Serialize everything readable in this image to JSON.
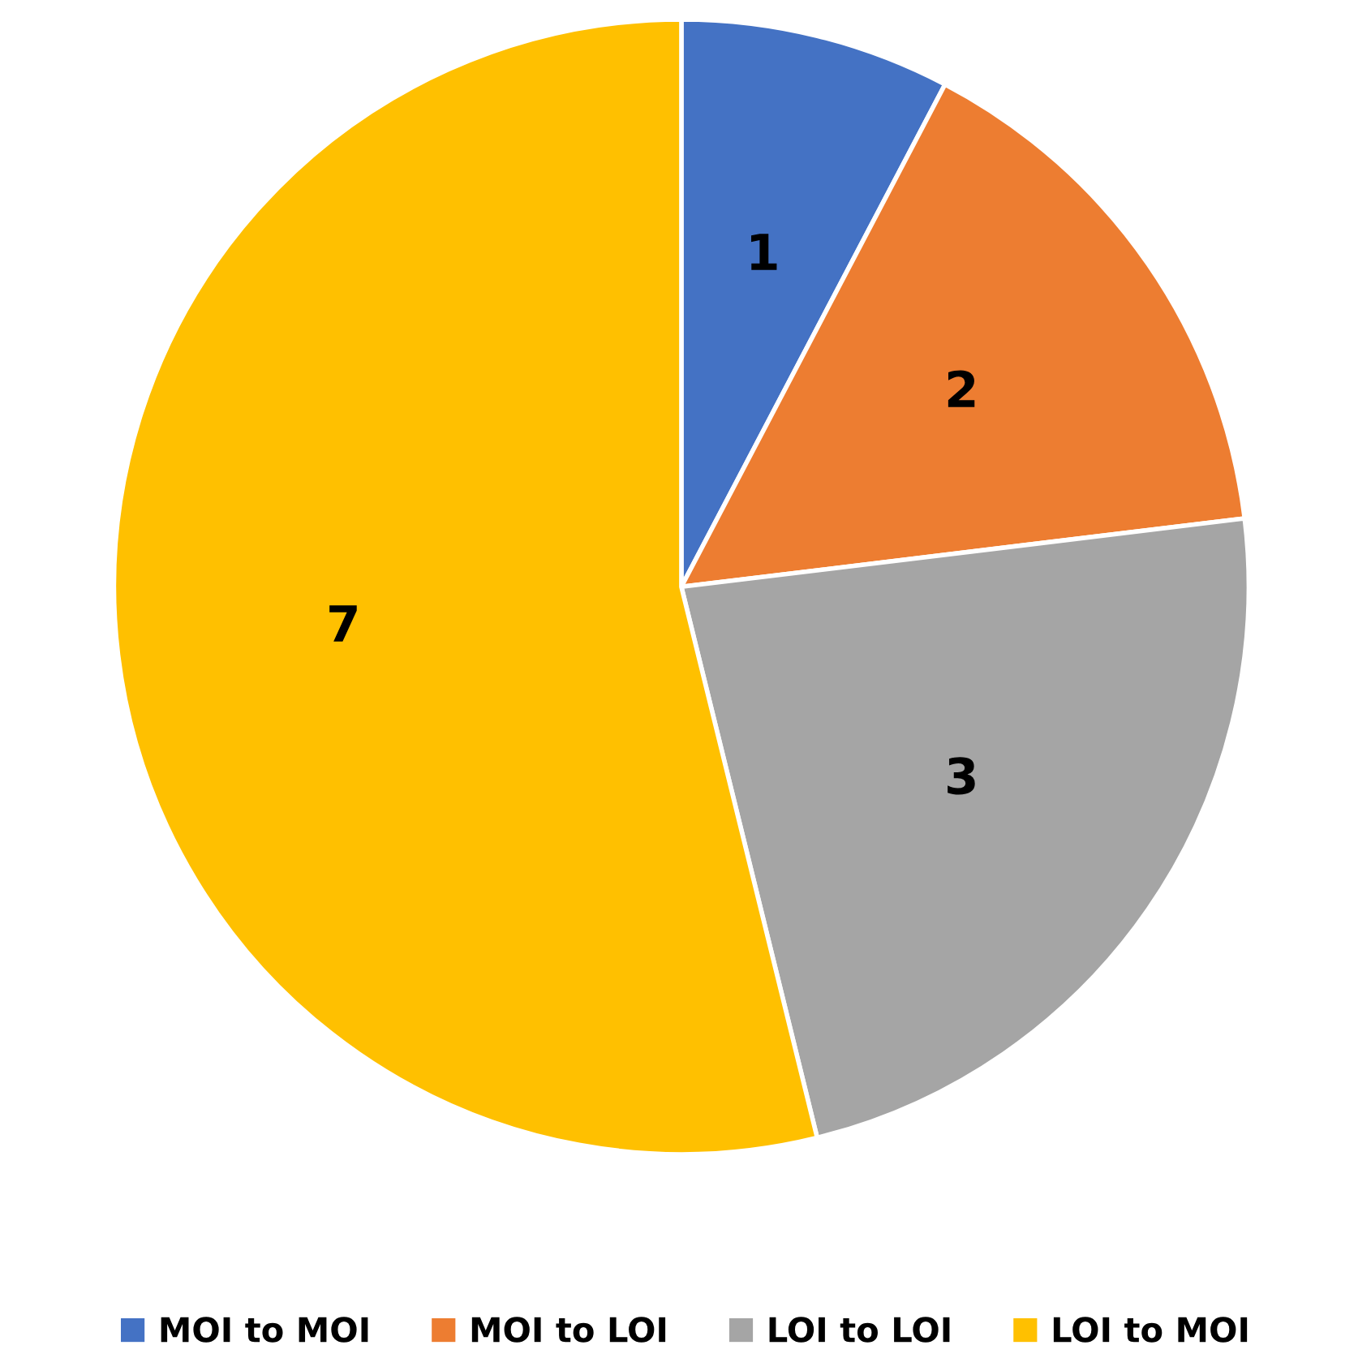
{
  "chart_data": {
    "type": "pie",
    "categories": [
      "MOI to MOI",
      "MOI to LOI",
      "LOI to LOI",
      "LOI to MOI"
    ],
    "values": [
      1,
      2,
      3,
      7
    ],
    "colors": [
      "#4472c4",
      "#ed7d31",
      "#a5a5a5",
      "#ffc000"
    ],
    "data_labels": true,
    "legend": "bottom"
  }
}
